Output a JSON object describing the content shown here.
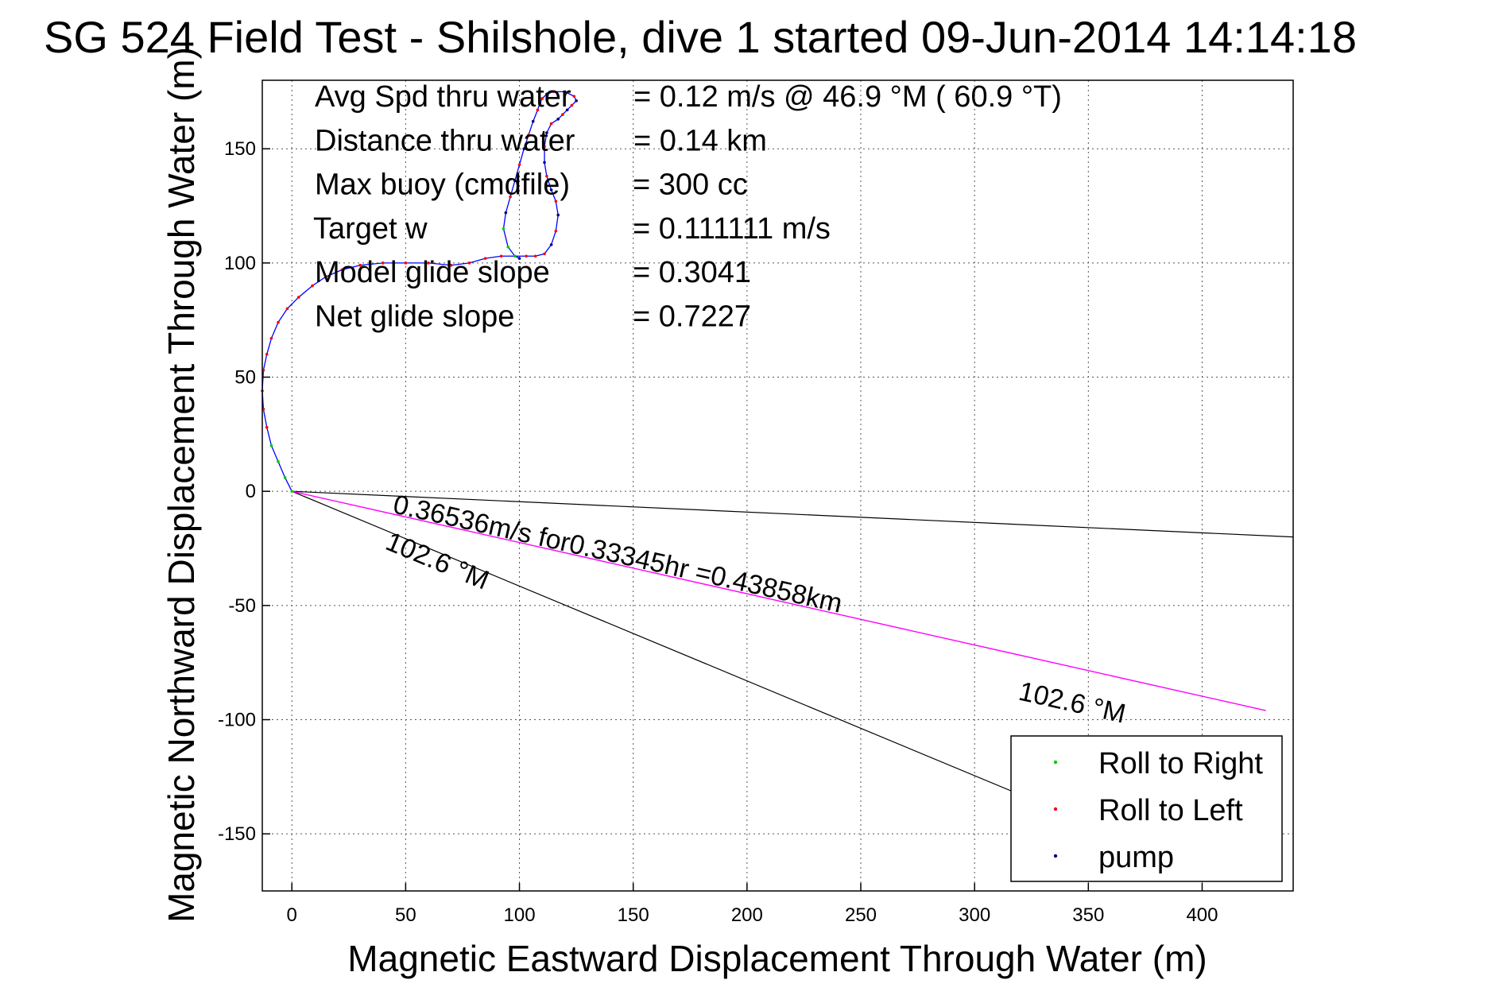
{
  "chart_data": {
    "type": "line",
    "title": "SG 524   Field Test - Shilshole, dive 1 started 09-Jun-2014 14:14:18",
    "xlabel": "Magnetic Eastward Displacement Through Water (m)",
    "ylabel": "Magnetic Northward Displacement Through Water (m)",
    "xlim": [
      -13,
      440
    ],
    "ylim": [
      -175,
      180
    ],
    "xticks": [
      0,
      50,
      100,
      150,
      200,
      250,
      300,
      350,
      400
    ],
    "yticks": [
      -150,
      -100,
      -50,
      0,
      50,
      100,
      150
    ],
    "grid": true,
    "legend_position": "bottom-right",
    "info_lines": [
      {
        "label": "Avg Spd thru water",
        "value": "=  0.12 m/s @  46.9 °M ( 60.9 °T)"
      },
      {
        "label": "Distance thru water",
        "value": "=  0.14 km"
      },
      {
        "label": "Max buoy (cmdfile)",
        "value": "= 300 cc"
      },
      {
        "label": "Target w",
        "value": "= 0.111111 m/s"
      },
      {
        "label": "Model glide slope",
        "value": "= 0.3041"
      },
      {
        "label": "Net glide slope",
        "value": "= 0.7227"
      }
    ],
    "track": {
      "color": "#0000ff",
      "x": [
        0,
        -3,
        -6,
        -9,
        -11,
        -12.5,
        -13,
        -12.5,
        -11,
        -9,
        -6,
        -2,
        3,
        9,
        15,
        22,
        30,
        40,
        50,
        60,
        70,
        78,
        85,
        92,
        98,
        103,
        107,
        111,
        114,
        116,
        117,
        116,
        114,
        112,
        111,
        111,
        112,
        114,
        117,
        119,
        121,
        123,
        125,
        124,
        120,
        115,
        112,
        110,
        109,
        108,
        106,
        104,
        102,
        100,
        98,
        96,
        94,
        93,
        95,
        98,
        100
      ],
      "y": [
        0,
        6,
        13,
        20,
        28,
        36,
        44,
        53,
        60,
        67,
        74,
        80,
        85,
        90,
        94,
        97,
        99,
        100,
        100,
        100,
        99,
        100,
        102,
        103,
        103,
        103,
        103,
        104,
        108,
        114,
        121,
        127,
        132,
        138,
        144,
        151,
        157,
        161,
        163,
        165,
        167,
        169,
        171,
        173,
        175,
        175,
        174,
        172,
        170,
        167,
        162,
        156,
        150,
        143,
        136,
        129,
        122,
        115,
        107,
        103,
        102
      ]
    },
    "depth_average_current_arrow": {
      "color": "#ff00ff",
      "x": [
        0,
        428
      ],
      "y": [
        0,
        -96
      ],
      "label": "0.36536m/s for0.33345hr =0.43858km",
      "heading_label": "102.6 °M"
    },
    "heading_lines": [
      {
        "x": [
          0,
          440
        ],
        "y": [
          0,
          -20
        ]
      },
      {
        "x": [
          0,
          318
        ],
        "y": [
          0,
          -132
        ],
        "label": "102.6 °M"
      }
    ],
    "legend": [
      {
        "label": "Roll to Right",
        "color": "#00cc00"
      },
      {
        "label": "Roll to Left",
        "color": "#ff0000"
      },
      {
        "label": "pump",
        "color": "#000080"
      }
    ]
  }
}
